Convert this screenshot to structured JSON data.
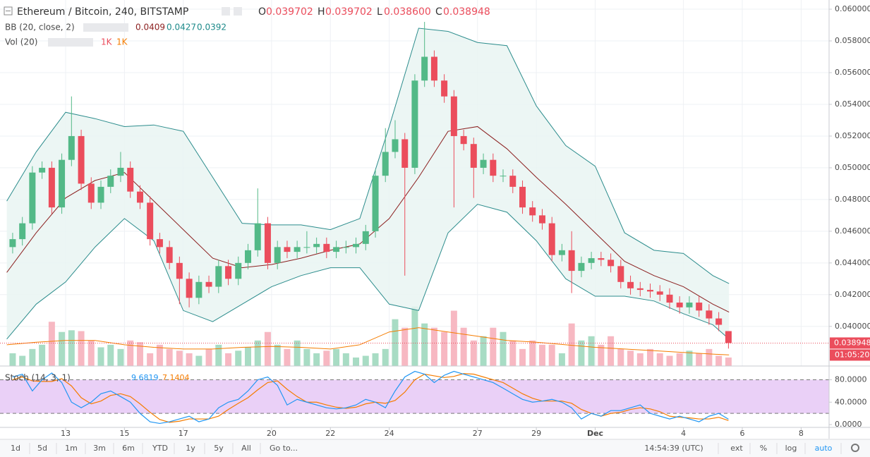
{
  "header": {
    "symbol": "Ethereum / Bitcoin, 240, BITSTAMP",
    "ohlc_letters": [
      "O",
      "H",
      "L",
      "C"
    ],
    "ohlc_labels": [
      "0.039702",
      "0.039702",
      "0.038600",
      "0.038948"
    ]
  },
  "chart_data": {
    "type": "candlestick",
    "x": [
      11.2,
      11.53,
      11.87,
      12.2,
      12.53,
      12.87,
      13.2,
      13.53,
      13.87,
      14.2,
      14.53,
      14.87,
      15.2,
      15.53,
      15.87,
      16.2,
      16.53,
      16.87,
      17.2,
      17.53,
      17.87,
      18.2,
      18.53,
      18.87,
      19.2,
      19.53,
      19.87,
      20.2,
      20.53,
      20.87,
      21.2,
      21.53,
      21.87,
      22.2,
      22.53,
      22.87,
      23.2,
      23.53,
      23.87,
      24.2,
      24.53,
      24.87,
      25.2,
      25.53,
      25.87,
      26.2,
      26.53,
      26.87,
      27.2,
      27.53,
      27.87,
      28.2,
      28.53,
      28.87,
      29.2,
      29.53,
      29.87,
      30.2,
      30.53,
      30.87,
      31.2,
      31.53,
      31.87,
      32.2,
      32.53,
      32.87,
      33.2,
      33.53,
      33.87,
      34.2,
      34.53,
      34.87,
      35.2,
      35.53
    ],
    "open": [
      0.045,
      0.0455,
      0.0465,
      0.0497,
      0.05,
      0.0475,
      0.0505,
      0.052,
      0.049,
      0.0478,
      0.0488,
      0.0495,
      0.05,
      0.0485,
      0.0478,
      0.0455,
      0.045,
      0.044,
      0.043,
      0.0418,
      0.0428,
      0.0425,
      0.0438,
      0.043,
      0.044,
      0.0448,
      0.0465,
      0.044,
      0.045,
      0.0447,
      0.045,
      0.045,
      0.0452,
      0.0447,
      0.045,
      0.045,
      0.0452,
      0.046,
      0.0495,
      0.051,
      0.0518,
      0.05,
      0.0555,
      0.057,
      0.0555,
      0.0545,
      0.052,
      0.0515,
      0.05,
      0.0505,
      0.0495,
      0.0495,
      0.0488,
      0.0475,
      0.047,
      0.0465,
      0.0445,
      0.0448,
      0.0435,
      0.044,
      0.0443,
      0.0442,
      0.0438,
      0.0428,
      0.0424,
      0.0423,
      0.0422,
      0.042,
      0.0415,
      0.0412,
      0.0415,
      0.041,
      0.0405,
      0.039702
    ],
    "high": [
      0.0459,
      0.0469,
      0.0501,
      0.0504,
      0.0504,
      0.0509,
      0.0545,
      0.0524,
      0.0494,
      0.0492,
      0.0499,
      0.051,
      0.0504,
      0.0489,
      0.0482,
      0.0459,
      0.0454,
      0.0444,
      0.0434,
      0.0432,
      0.0432,
      0.0442,
      0.0442,
      0.0444,
      0.0452,
      0.0487,
      0.0469,
      0.0454,
      0.0454,
      0.0454,
      0.046,
      0.0456,
      0.0456,
      0.0454,
      0.0454,
      0.0456,
      0.0464,
      0.0499,
      0.0525,
      0.053,
      0.0522,
      0.0559,
      0.0592,
      0.0574,
      0.0559,
      0.0549,
      0.0524,
      0.0519,
      0.0509,
      0.0509,
      0.0499,
      0.0499,
      0.0492,
      0.0479,
      0.0474,
      0.0469,
      0.0452,
      0.046,
      0.0444,
      0.0447,
      0.0447,
      0.0446,
      0.0442,
      0.0432,
      0.0428,
      0.0427,
      0.0426,
      0.0424,
      0.0419,
      0.0419,
      0.0419,
      0.0414,
      0.0409,
      0.039702
    ],
    "low": [
      0.0446,
      0.0451,
      0.0461,
      0.0493,
      0.0471,
      0.0471,
      0.0501,
      0.0486,
      0.0474,
      0.0474,
      0.0484,
      0.0491,
      0.0481,
      0.0474,
      0.0451,
      0.0446,
      0.0436,
      0.0414,
      0.0412,
      0.0414,
      0.0421,
      0.0421,
      0.0426,
      0.0426,
      0.0436,
      0.0444,
      0.0436,
      0.0436,
      0.0443,
      0.0443,
      0.0446,
      0.0446,
      0.0443,
      0.0443,
      0.0446,
      0.0446,
      0.0448,
      0.0456,
      0.0491,
      0.0506,
      0.0432,
      0.0496,
      0.0551,
      0.0551,
      0.0541,
      0.0475,
      0.0511,
      0.0481,
      0.0496,
      0.0491,
      0.0491,
      0.0484,
      0.0471,
      0.0466,
      0.0461,
      0.0441,
      0.0441,
      0.0421,
      0.0431,
      0.0436,
      0.0438,
      0.0434,
      0.0424,
      0.042,
      0.0419,
      0.0418,
      0.0416,
      0.0411,
      0.0408,
      0.0408,
      0.0406,
      0.0401,
      0.0397,
      0.0386
    ],
    "close": [
      0.0455,
      0.0465,
      0.0497,
      0.05,
      0.0475,
      0.0505,
      0.052,
      0.049,
      0.0478,
      0.0488,
      0.0495,
      0.05,
      0.0485,
      0.0478,
      0.0455,
      0.045,
      0.044,
      0.043,
      0.0418,
      0.0428,
      0.0425,
      0.0438,
      0.043,
      0.044,
      0.0448,
      0.0465,
      0.044,
      0.045,
      0.0447,
      0.045,
      0.045,
      0.0452,
      0.0447,
      0.045,
      0.045,
      0.0452,
      0.046,
      0.0495,
      0.051,
      0.0518,
      0.05,
      0.0555,
      0.057,
      0.0555,
      0.0545,
      0.052,
      0.0515,
      0.05,
      0.0505,
      0.0495,
      0.0495,
      0.0488,
      0.0475,
      0.047,
      0.0465,
      0.0445,
      0.0448,
      0.0435,
      0.044,
      0.0443,
      0.0442,
      0.0438,
      0.0428,
      0.0424,
      0.0423,
      0.0422,
      0.042,
      0.0415,
      0.0412,
      0.0415,
      0.041,
      0.0405,
      0.0401,
      0.038948
    ],
    "colors": {
      "up": "#53b987",
      "down": "#eb4d5c"
    },
    "xlim": [
      10.77,
      38.95
    ],
    "xticks": [
      13,
      15,
      17,
      20,
      22,
      24,
      27,
      29,
      {
        "value": 31,
        "label": "Dec"
      },
      {
        "value": 34,
        "label": "4"
      },
      {
        "value": 36,
        "label": "6"
      },
      {
        "value": 38,
        "label": "8"
      }
    ],
    "ylim": [
      0.0375,
      0.06058
    ],
    "yticks": [
      {
        "value": 0.04,
        "label": "0.040000"
      },
      {
        "value": 0.042,
        "label": "0.042000"
      },
      {
        "value": 0.044,
        "label": "0.044000"
      },
      {
        "value": 0.046,
        "label": "0.046000"
      },
      {
        "value": 0.048,
        "label": "0.048000"
      },
      {
        "value": 0.05,
        "label": "0.050000"
      },
      {
        "value": 0.052,
        "label": "0.052000"
      },
      {
        "value": 0.054,
        "label": "0.054000"
      },
      {
        "value": 0.056,
        "label": "0.056000"
      },
      {
        "value": 0.058,
        "label": "0.058000"
      },
      {
        "value": 0.06,
        "label": "0.060000"
      }
    ],
    "grid": true,
    "countdown": "01:05:20",
    "bb": {
      "name": "BB (20, close, 2)",
      "fill": "#e9f4f2",
      "band_color": "#2b8c8c",
      "basis_color": "#8b1f1f",
      "x": [
        11,
        12,
        13,
        14,
        15,
        16,
        17,
        18,
        19,
        20,
        21,
        22,
        23,
        24,
        25,
        26,
        27,
        28,
        29,
        30,
        31,
        32,
        33,
        34,
        35,
        35.55
      ],
      "upper": [
        0.0479,
        0.051,
        0.0535,
        0.0531,
        0.0526,
        0.0527,
        0.0523,
        0.0494,
        0.0465,
        0.0464,
        0.0464,
        0.0461,
        0.0468,
        0.0526,
        0.0588,
        0.0586,
        0.0579,
        0.0577,
        0.0539,
        0.0514,
        0.0501,
        0.0459,
        0.0448,
        0.0446,
        0.0432,
        0.0427
      ],
      "basis": [
        0.0434,
        0.0459,
        0.0481,
        0.0492,
        0.0497,
        0.0479,
        0.0461,
        0.0443,
        0.0437,
        0.0439,
        0.0443,
        0.0448,
        0.0452,
        0.0468,
        0.0494,
        0.0523,
        0.0526,
        0.0512,
        0.0494,
        0.0477,
        0.0459,
        0.0441,
        0.0432,
        0.0425,
        0.0414,
        0.0409
      ],
      "lower": [
        0.0392,
        0.0414,
        0.0428,
        0.045,
        0.0468,
        0.0454,
        0.041,
        0.0403,
        0.0414,
        0.0425,
        0.0432,
        0.0437,
        0.0437,
        0.0414,
        0.041,
        0.0459,
        0.0477,
        0.0472,
        0.0454,
        0.043,
        0.0419,
        0.0419,
        0.0416,
        0.0408,
        0.0401,
        0.0392
      ]
    },
    "volume": {
      "name": "Vol (20)",
      "labels": [
        "1K",
        "1K"
      ],
      "ylim": [
        0,
        43
      ],
      "up_color": "#a8dcc4",
      "down_color": "#f7b8c2",
      "ma_color": "#f57c00",
      "values": [
        1.5,
        1.2,
        2,
        2.5,
        5.2,
        4,
        4.2,
        4.1,
        3,
        2.2,
        2.5,
        2,
        3,
        2.8,
        1.5,
        2.5,
        2,
        1.8,
        1.5,
        1.2,
        2,
        2.5,
        1.5,
        1.8,
        2.2,
        3,
        4,
        2.5,
        2,
        3,
        2,
        1.5,
        1.8,
        2,
        1.5,
        1,
        1.2,
        1.5,
        2,
        5.5,
        4.5,
        7,
        5,
        4.5,
        4,
        6.5,
        4.5,
        3,
        3.5,
        4.5,
        4,
        3,
        2,
        3,
        2.5,
        2.5,
        1.5,
        5,
        3,
        3.5,
        2.5,
        3.5,
        2,
        1.8,
        1.5,
        2,
        1.5,
        1.2,
        1.5,
        1.8,
        1.5,
        2,
        1.2,
        1
      ],
      "ma_x": [
        11,
        12,
        13,
        14,
        15,
        16,
        17,
        18,
        19,
        20,
        21,
        22,
        23,
        24,
        25,
        26,
        27,
        28,
        29,
        30,
        31,
        32,
        33,
        34,
        35,
        35.55
      ],
      "ma": [
        2.5,
        2.8,
        3,
        3,
        2.5,
        2.2,
        2,
        2,
        2.2,
        2.3,
        2.2,
        2,
        2.5,
        4,
        4.5,
        4,
        3.5,
        3,
        2.8,
        2.5,
        2.2,
        2,
        1.8,
        1.6,
        1.4,
        1.3
      ]
    },
    "stoch": {
      "name": "Stoch (14, 3, 1)",
      "k_color": "#2196f3",
      "d_color": "#f57c00",
      "band_fill": "#ead0f7",
      "band": [
        20,
        80
      ],
      "ylim": [
        -5,
        102
      ],
      "yticks": [
        {
          "value": 0,
          "label": "0.0000"
        },
        {
          "value": 40,
          "label": "40.0000"
        },
        {
          "value": 80,
          "label": "80.0000"
        }
      ],
      "k": [
        85,
        90,
        60,
        80,
        92,
        75,
        40,
        30,
        40,
        55,
        60,
        50,
        40,
        20,
        5,
        2,
        5,
        10,
        15,
        5,
        10,
        30,
        40,
        45,
        60,
        80,
        85,
        70,
        35,
        45,
        40,
        35,
        30,
        28,
        30,
        35,
        45,
        40,
        30,
        60,
        85,
        95,
        90,
        75,
        88,
        95,
        90,
        85,
        80,
        75,
        65,
        55,
        45,
        40,
        42,
        45,
        40,
        30,
        10,
        20,
        15,
        25,
        25,
        30,
        35,
        20,
        15,
        10,
        15,
        10,
        5,
        15,
        20,
        9.6819
      ],
      "d": [
        80,
        85,
        78,
        77,
        77,
        82,
        69,
        48,
        37,
        42,
        52,
        55,
        50,
        37,
        22,
        9,
        4,
        6,
        10,
        10,
        10,
        15,
        27,
        38,
        48,
        62,
        75,
        78,
        63,
        50,
        40,
        40,
        35,
        31,
        29,
        31,
        37,
        40,
        38,
        43,
        58,
        80,
        90,
        87,
        84,
        86,
        91,
        90,
        85,
        80,
        75,
        65,
        55,
        47,
        42,
        42,
        42,
        38,
        27,
        20,
        15,
        20,
        22,
        27,
        30,
        28,
        23,
        15,
        13,
        12,
        10,
        10,
        13,
        7.1404
      ]
    }
  },
  "toolbar": {
    "ranges": [
      "1d",
      "5d",
      "1m",
      "3m",
      "6m",
      "YTD",
      "1y",
      "5y",
      "All"
    ],
    "goto": "Go to...",
    "time": "14:54:39 (UTC)",
    "options": [
      "ext",
      "%",
      "log",
      "auto"
    ]
  }
}
